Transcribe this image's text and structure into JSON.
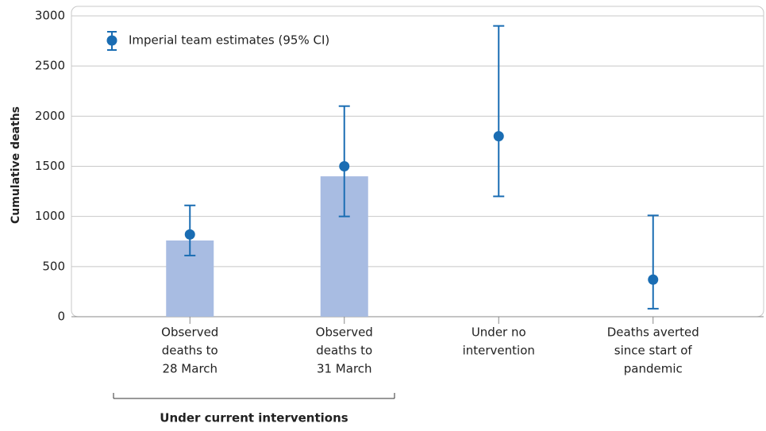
{
  "chart_data": {
    "type": "bar",
    "y_label": "Cumulative deaths",
    "categories": [
      [
        "Observed",
        "deaths to",
        "28 March"
      ],
      [
        "Observed",
        "deaths to",
        "31 March"
      ],
      [
        "Under no",
        "intervention"
      ],
      [
        "Deaths averted",
        "since start of",
        "pandemic"
      ]
    ],
    "group_label": "Under current interventions",
    "series": [
      {
        "name": "Observed deaths",
        "color": "#a8bce2",
        "values": [
          760,
          1400,
          null,
          null
        ]
      },
      {
        "name": "Imperial team estimates (95% CI)",
        "color": "#1a6db3",
        "values": [
          820,
          1500,
          1800,
          370
        ],
        "lower": [
          610,
          1000,
          1200,
          80
        ],
        "upper": [
          1110,
          2100,
          2900,
          1010
        ]
      }
    ],
    "ylim": [
      0,
      3000
    ],
    "yticks": [
      0,
      500,
      1000,
      1500,
      2000,
      2500,
      3000
    ],
    "grid": true
  }
}
